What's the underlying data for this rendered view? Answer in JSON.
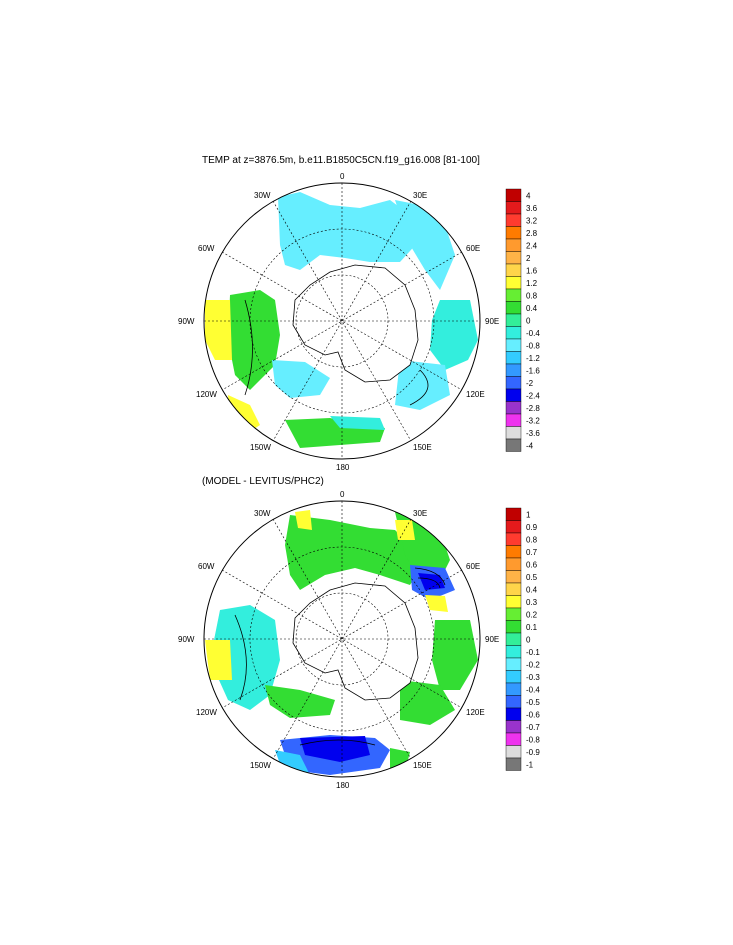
{
  "panels": [
    {
      "title": "TEMP at z=3876.5m, b.e11.B1850C5CN.f19_g16.008 [81-100]",
      "lon_labels": [
        "0",
        "30E",
        "60E",
        "90E",
        "120E",
        "150E",
        "180",
        "150W",
        "120W",
        "90W",
        "60W",
        "30W"
      ],
      "colorbar": {
        "labels": [
          "4",
          "3.6",
          "3.2",
          "2.8",
          "2.4",
          "2",
          "1.6",
          "1.2",
          "0.8",
          "0.4",
          "0",
          "-0.4",
          "-0.8",
          "-1.2",
          "-1.6",
          "-2",
          "-2.4",
          "-2.8",
          "-3.2",
          "-3.6",
          "-4"
        ],
        "colors": [
          "#c00000",
          "#e41a1c",
          "#ff3b2f",
          "#ff7b00",
          "#ff9a2e",
          "#ffb347",
          "#ffd54a",
          "#ffff33",
          "#66ee33",
          "#33dd33",
          "#33ee99",
          "#33eedd",
          "#66eeff",
          "#33ccff",
          "#3399ff",
          "#3366ff",
          "#0000ee",
          "#9933cc",
          "#ee33ee",
          "#dddddd",
          "#777777"
        ]
      }
    },
    {
      "title": "(MODEL - LEVITUS/PHC2)",
      "lon_labels": [
        "0",
        "30E",
        "60E",
        "90E",
        "120E",
        "150E",
        "180",
        "150W",
        "120W",
        "90W",
        "60W",
        "30W"
      ],
      "colorbar": {
        "labels": [
          "1",
          "0.9",
          "0.8",
          "0.7",
          "0.6",
          "0.5",
          "0.4",
          "0.3",
          "0.2",
          "0.1",
          "0",
          "-0.1",
          "-0.2",
          "-0.3",
          "-0.4",
          "-0.5",
          "-0.6",
          "-0.7",
          "-0.8",
          "-0.9",
          "-1"
        ],
        "colors": [
          "#c00000",
          "#e41a1c",
          "#ff3b2f",
          "#ff7b00",
          "#ff9a2e",
          "#ffb347",
          "#ffd54a",
          "#ffff33",
          "#66ee33",
          "#33dd33",
          "#33ee99",
          "#33eedd",
          "#66eeff",
          "#33ccff",
          "#3399ff",
          "#3366ff",
          "#0000ee",
          "#9933cc",
          "#ee33ee",
          "#dddddd",
          "#777777"
        ]
      }
    }
  ],
  "colors": {
    "land": "#ffffff",
    "cyan": "#66eeff",
    "lightcyan": "#33eedd",
    "green": "#33dd33",
    "yellow": "#ffff33",
    "blue": "#0000ee",
    "midblue": "#3366ff"
  }
}
